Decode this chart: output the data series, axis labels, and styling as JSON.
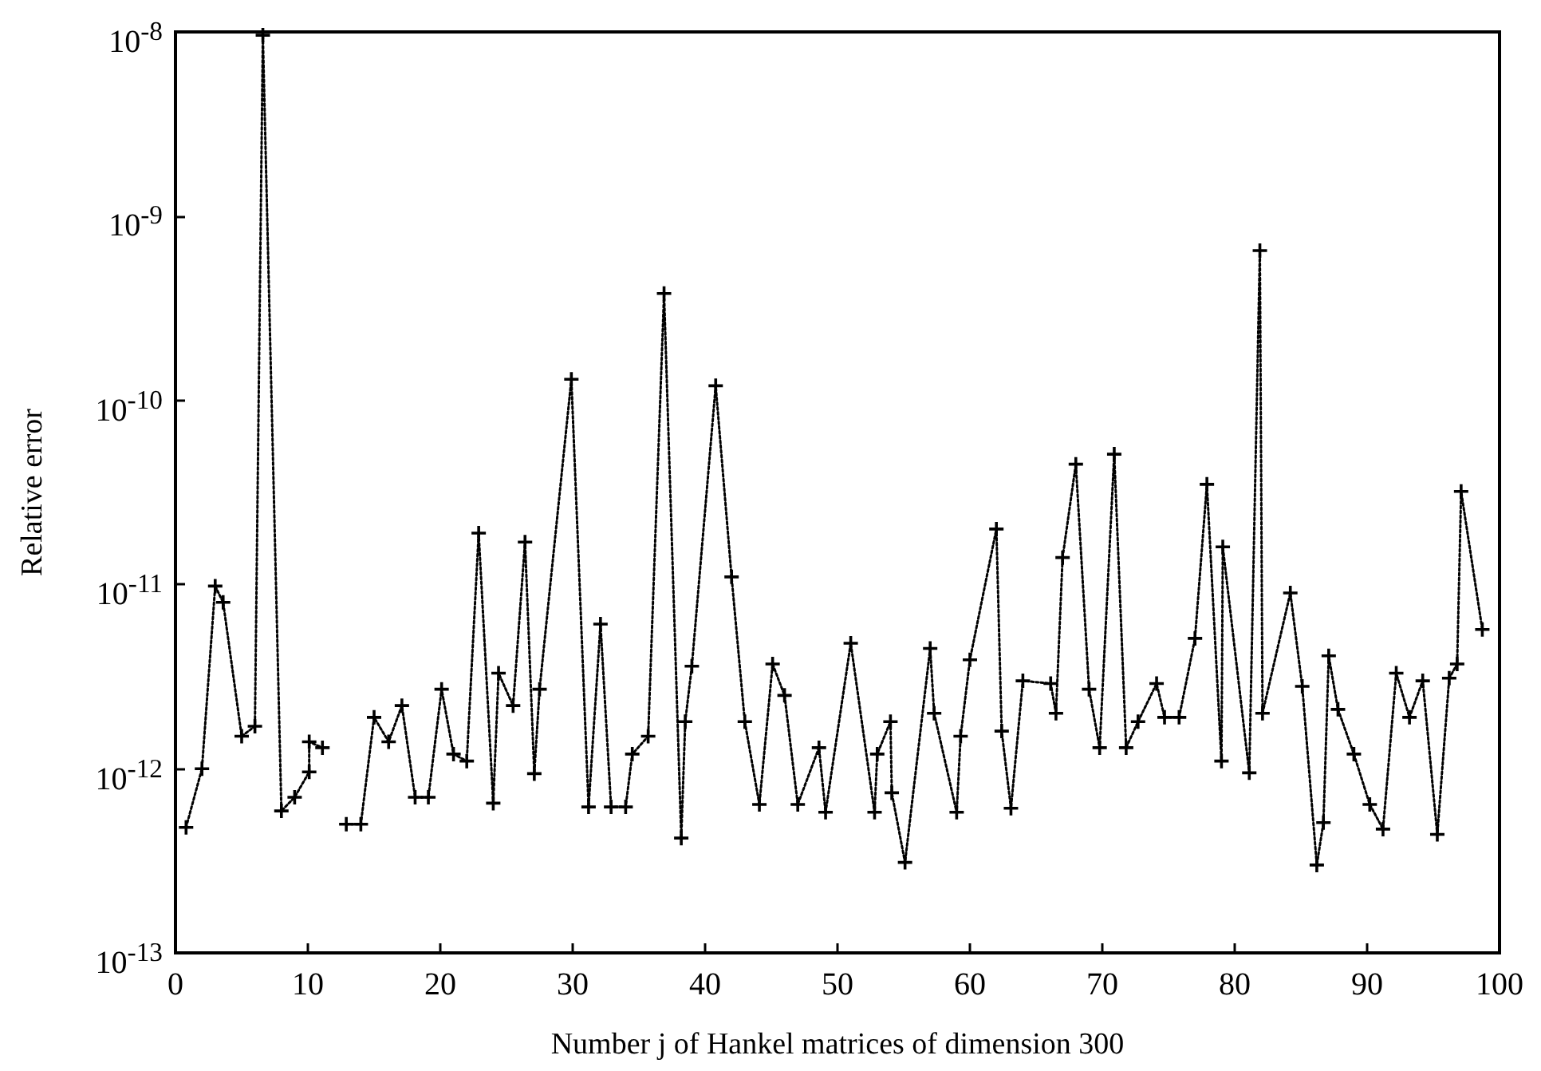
{
  "chart_data": {
    "type": "line",
    "xlabel": "Number j of Hankel matrices of dimension 300",
    "ylabel": "Relative error",
    "log": "y",
    "grid": false,
    "marker": "cross",
    "line_style": "dotted",
    "xlim": [
      0,
      100
    ],
    "xticks": [
      0,
      10,
      20,
      30,
      40,
      50,
      60,
      70,
      80,
      90,
      100
    ],
    "ylim": [
      1e-13,
      1e-08
    ],
    "yticks": [
      {
        "value": 1e-13,
        "label": "10$^{-13}$"
      },
      {
        "value": 1e-12,
        "label": "10$^{-12}$"
      },
      {
        "value": 1e-11,
        "label": "10$^{-11}$"
      },
      {
        "value": 1e-10,
        "label": "10$^{-10}$"
      },
      {
        "value": 1e-09,
        "label": "10$^{-9}$"
      },
      {
        "value": 1e-08,
        "label": "10$^{-8}$"
      }
    ],
    "series": [
      {
        "color": "#000000",
        "x": [
          0.8,
          2.0,
          3.0,
          3.6,
          5.0,
          6.0,
          6.6,
          8.0,
          9.0,
          10.1,
          10.1,
          11.1,
          12.0,
          12.9,
          14.0,
          15.0,
          16.1,
          17.1,
          18.1,
          19.1,
          20.1,
          21.0,
          22.0,
          22.9,
          24.0,
          24.4,
          25.5,
          26.4,
          27.1,
          27.5,
          29.9,
          31.2,
          32.1,
          32.9,
          34.0,
          34.5,
          35.7,
          36.9,
          38.2,
          38.5,
          39.0,
          40.8,
          42.0,
          43.0,
          44.1,
          45.1,
          46.0,
          47.0,
          48.6,
          49.1,
          51.0,
          52.8,
          53.0,
          54.0,
          54.1,
          55.1,
          57.0,
          57.3,
          59.0,
          59.3,
          60.0,
          62.0,
          62.4,
          63.1,
          64.0,
          66.1,
          66.5,
          67.0,
          68.0,
          69.0,
          69.8,
          70.9,
          71.8,
          72.7,
          74.1,
          74.7,
          75.8,
          77.0,
          77.9,
          79.0,
          79.1,
          81.1,
          81.9,
          82.1,
          84.2,
          85.1,
          86.2,
          86.7,
          87.1,
          87.8,
          89.0,
          90.2,
          91.2,
          92.2,
          93.2,
          94.2,
          95.3,
          96.2,
          96.8,
          97.1,
          98.7
        ],
        "values": [
          4.8e-13,
          1e-12,
          9.8e-12,
          8e-12,
          1.5e-12,
          1.7e-12,
          9.6e-09,
          5.9e-13,
          7e-13,
          9.6e-13,
          1.4e-12,
          1.3e-12,
          null,
          5e-13,
          5e-13,
          1.9e-12,
          1.4e-12,
          2.2e-12,
          7e-13,
          7e-13,
          2.7e-12,
          1.2e-12,
          1.1e-12,
          1.9e-11,
          6.5e-13,
          3.3e-12,
          2.2e-12,
          1.7e-11,
          9.4e-13,
          2.7e-12,
          1.3e-10,
          6.2e-13,
          6.1e-12,
          6.2e-13,
          6.2e-13,
          1.2e-12,
          1.5e-12,
          3.8e-10,
          4.2e-13,
          1.8e-12,
          3.6e-12,
          1.2e-10,
          1.1e-11,
          1.8e-12,
          6.4e-13,
          3.7e-12,
          2.5e-12,
          6.4e-13,
          1.3e-12,
          5.8e-13,
          4.8e-12,
          5.8e-13,
          1.2e-12,
          1.8e-12,
          7.4e-13,
          3.1e-13,
          4.5e-12,
          2e-12,
          5.8e-13,
          1.5e-12,
          3.9e-12,
          2e-11,
          1.6e-12,
          6.1e-13,
          3e-12,
          2.9e-12,
          2e-12,
          1.4e-11,
          4.5e-11,
          2.7e-12,
          1.3e-12,
          5.1e-11,
          1.3e-12,
          1.8e-12,
          2.9e-12,
          1.9e-12,
          1.9e-12,
          5.1e-12,
          3.5e-11,
          1.1e-12,
          1.6e-11,
          9.5e-13,
          6.5e-10,
          2e-12,
          9e-12,
          2.8e-12,
          3e-13,
          5.1e-13,
          4.1e-12,
          2.1e-12,
          1.2e-12,
          6.4e-13,
          4.7e-13,
          3.3e-12,
          1.9e-12,
          3e-12,
          4.4e-13,
          3.1e-12,
          3.7e-12,
          3.2e-11,
          5.7e-12
        ]
      }
    ]
  }
}
